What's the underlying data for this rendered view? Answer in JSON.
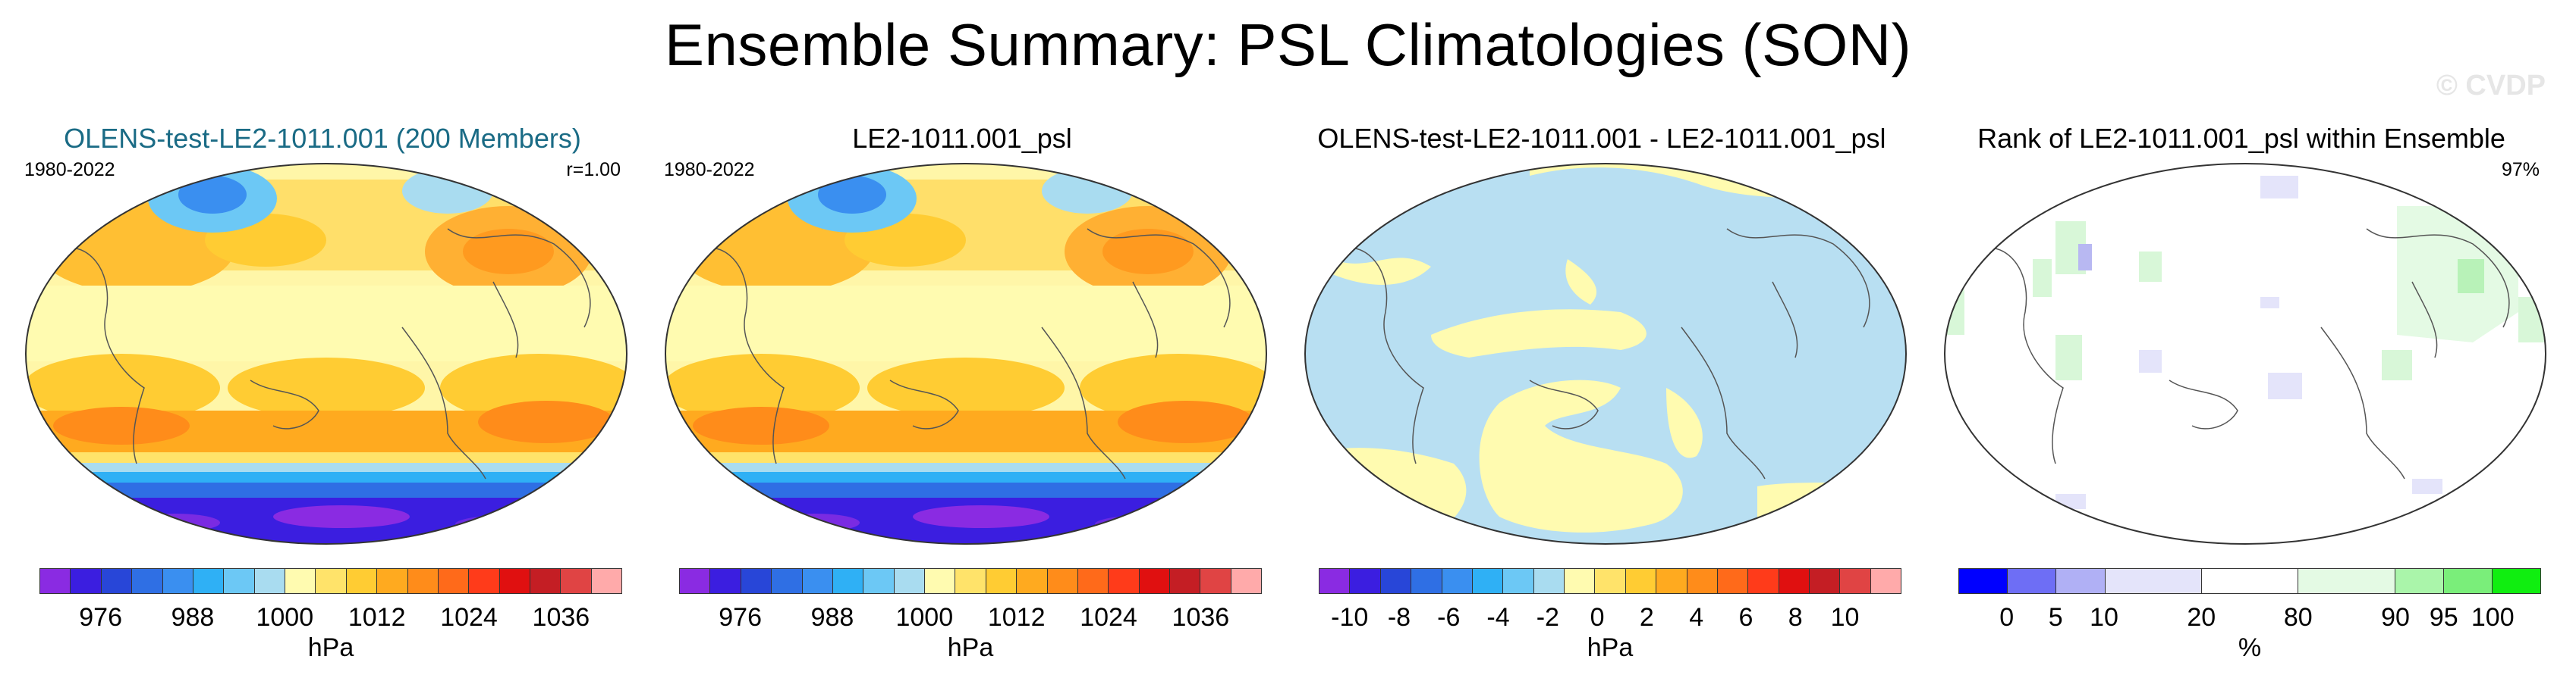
{
  "title": "Ensemble Summary: PSL Climatologies (SON)",
  "watermark": "© CVDP",
  "panels": [
    {
      "title": "OLENS-test-LE2-1011.001 (200 Members)",
      "left_label": "1980-2022",
      "right_label": "r=1.00",
      "unit": "hPa",
      "colorbar_labels": [
        "976",
        "988",
        "1000",
        "1012",
        "1024",
        "1036"
      ],
      "colors": [
        "#8a2be2",
        "#3b1ee0",
        "#2846d8",
        "#2f6fe4",
        "#3a8ff0",
        "#2fb0f5",
        "#6cc8f5",
        "#a9dcf0",
        "#fffbb0",
        "#ffe36a",
        "#ffcc33",
        "#ffaa1f",
        "#ff8c1a",
        "#ff6a1a",
        "#ff3b1a",
        "#e01010",
        "#c41e24",
        "#e04444",
        "#ffaaaa"
      ]
    },
    {
      "title": "LE2-1011.001_psl",
      "left_label": "1980-2022",
      "right_label": "",
      "unit": "hPa",
      "colorbar_labels": [
        "976",
        "988",
        "1000",
        "1012",
        "1024",
        "1036"
      ],
      "colors": [
        "#8a2be2",
        "#3b1ee0",
        "#2846d8",
        "#2f6fe4",
        "#3a8ff0",
        "#2fb0f5",
        "#6cc8f5",
        "#a9dcf0",
        "#fffbb0",
        "#ffe36a",
        "#ffcc33",
        "#ffaa1f",
        "#ff8c1a",
        "#ff6a1a",
        "#ff3b1a",
        "#e01010",
        "#c41e24",
        "#e04444",
        "#ffaaaa"
      ]
    },
    {
      "title": "OLENS-test-LE2-1011.001 - LE2-1011.001_psl",
      "left_label": "",
      "right_label": "",
      "unit": "hPa",
      "colorbar_labels": [
        "-10",
        "-8",
        "-6",
        "-4",
        "-2",
        "0",
        "2",
        "4",
        "6",
        "8",
        "10"
      ],
      "colors": [
        "#8a2be2",
        "#3b1ee0",
        "#2846d8",
        "#2f6fe4",
        "#3a8ff0",
        "#2fb0f5",
        "#6cc8f5",
        "#a9dcf0",
        "#fffbb0",
        "#ffe36a",
        "#ffcc33",
        "#ffaa1f",
        "#ff8c1a",
        "#ff6a1a",
        "#ff3b1a",
        "#e01010",
        "#c41e24",
        "#e04444",
        "#ffaaaa"
      ]
    },
    {
      "title": "Rank of LE2-1011.001_psl within Ensemble",
      "left_label": "",
      "right_label": "97%",
      "unit": "%",
      "colorbar_labels": [
        "0",
        "5",
        "10",
        "20",
        "80",
        "90",
        "95",
        "100"
      ],
      "colors": [
        "#0000ff",
        "#6e6ef5",
        "#b0b0f5",
        "#e4e4fa",
        "#ffffff",
        "#e4fae4",
        "#aaf5aa",
        "#7aee7a",
        "#10ee10"
      ]
    }
  ]
}
